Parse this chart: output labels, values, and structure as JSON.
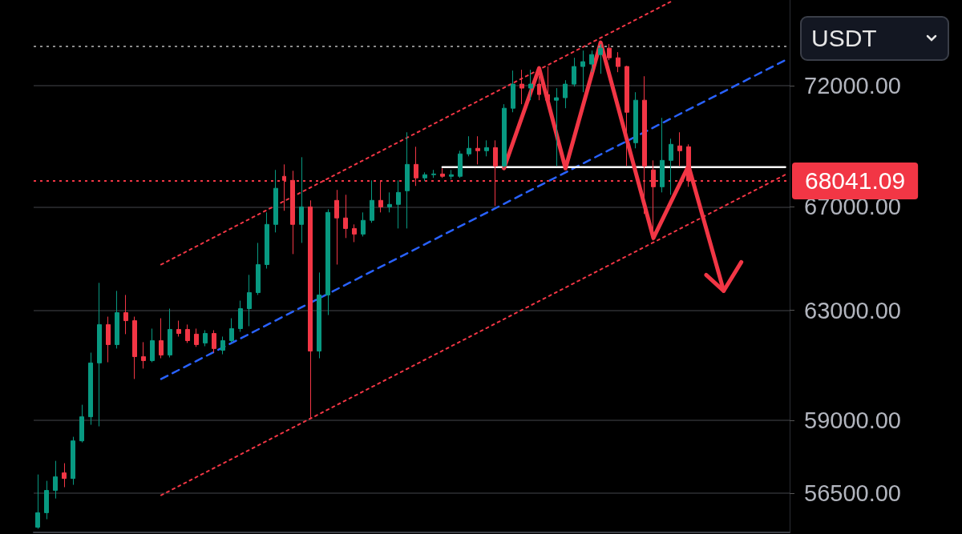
{
  "chart_data": {
    "type": "candlestick",
    "categories": [
      null,
      null,
      null,
      null,
      null,
      null,
      null,
      null,
      null,
      null,
      null,
      null,
      null,
      null,
      null,
      null,
      null,
      null,
      null,
      null,
      null,
      null,
      null,
      null,
      null,
      null,
      null,
      null,
      null,
      null,
      null,
      null,
      null,
      null,
      null,
      null,
      null,
      null,
      null,
      null,
      null,
      null,
      null,
      null,
      null,
      null,
      null,
      null,
      null,
      null,
      null,
      null,
      null,
      null,
      null,
      null,
      null,
      null,
      null,
      null,
      null,
      null,
      null,
      null,
      null,
      null,
      null,
      null,
      null,
      null,
      null,
      null,
      null,
      null,
      null,
      null,
      null,
      null,
      null,
      null,
      null,
      null,
      null,
      null,
      null,
      null
    ],
    "ohlc": [
      [
        55370,
        57135,
        55320,
        55850
      ],
      [
        55850,
        56920,
        55635,
        56595
      ],
      [
        56595,
        57600,
        56325,
        57055
      ],
      [
        57190,
        57520,
        56705,
        57000
      ],
      [
        57000,
        58430,
        56785,
        58290
      ],
      [
        58290,
        59555,
        58235,
        59130
      ],
      [
        59130,
        61430,
        58850,
        61055
      ],
      [
        61055,
        64035,
        58795,
        62465
      ],
      [
        62465,
        62760,
        61080,
        61725
      ],
      [
        61725,
        63730,
        61580,
        62910
      ],
      [
        62910,
        63575,
        62110,
        62610
      ],
      [
        62610,
        62760,
        60475,
        61285
      ],
      [
        61285,
        61815,
        60850,
        61140
      ],
      [
        61140,
        62315,
        61080,
        61870
      ],
      [
        61870,
        62700,
        61225,
        61345
      ],
      [
        61345,
        63060,
        61255,
        62285
      ],
      [
        62285,
        62610,
        62020,
        62135
      ],
      [
        62285,
        62465,
        61785,
        61870
      ],
      [
        62110,
        62315,
        61640,
        61725
      ],
      [
        61785,
        62255,
        61665,
        62135
      ],
      [
        62135,
        62255,
        61430,
        61580
      ],
      [
        61520,
        62020,
        61370,
        61870
      ],
      [
        61870,
        62700,
        61785,
        62315
      ],
      [
        62315,
        63360,
        62195,
        63060
      ],
      [
        63060,
        64340,
        62405,
        63665
      ],
      [
        63665,
        65575,
        63575,
        64735
      ],
      [
        64735,
        66775,
        64580,
        66300
      ],
      [
        66300,
        68485,
        65985,
        67740
      ],
      [
        68225,
        68710,
        66840,
        68060
      ],
      [
        68060,
        68450,
        65140,
        66300
      ],
      [
        66300,
        69005,
        65575,
        66995
      ],
      [
        66995,
        67255,
        59075,
        61490
      ],
      [
        61490,
        64430,
        61225,
        63575
      ],
      [
        63575,
        66900,
        62820,
        66775
      ],
      [
        67255,
        67675,
        64735,
        66555
      ],
      [
        66555,
        67480,
        65765,
        66140
      ],
      [
        66140,
        66300,
        65605,
        65920
      ],
      [
        65920,
        66775,
        65825,
        66460
      ],
      [
        66460,
        68060,
        66365,
        67255
      ],
      [
        67255,
        68060,
        66775,
        66995
      ],
      [
        66995,
        67575,
        66775,
        67095
      ],
      [
        67095,
        68060,
        66140,
        67575
      ],
      [
        67640,
        70035,
        66140,
        68710
      ],
      [
        68710,
        69435,
        67835,
        68160
      ],
      [
        68160,
        68385,
        68030,
        68290
      ],
      [
        68290,
        68485,
        68160,
        68320
      ],
      [
        68320,
        68550,
        68160,
        68225
      ],
      [
        68225,
        68485,
        68095,
        68290
      ],
      [
        68225,
        69270,
        68160,
        69140
      ],
      [
        69140,
        69870,
        69040,
        69370
      ],
      [
        69370,
        69870,
        68710,
        69270
      ],
      [
        69270,
        69700,
        69040,
        69400
      ],
      [
        69400,
        69700,
        67030,
        68645
      ],
      [
        68645,
        71215,
        68550,
        71045
      ],
      [
        71045,
        72655,
        70875,
        72070
      ],
      [
        72070,
        72690,
        71215,
        71900
      ],
      [
        71900,
        72690,
        71385,
        72070
      ],
      [
        72070,
        72410,
        71385,
        71625
      ],
      [
        71625,
        72830,
        71045,
        71385
      ],
      [
        71385,
        71900,
        68645,
        71490
      ],
      [
        71490,
        72240,
        71045,
        72070
      ],
      [
        72070,
        73210,
        71965,
        72830
      ],
      [
        72830,
        73525,
        71725,
        73040
      ],
      [
        72935,
        73525,
        72585,
        73350
      ],
      [
        73350,
        73810,
        72515,
        73630
      ],
      [
        73630,
        73810,
        73105,
        73210
      ],
      [
        73210,
        73455,
        72585,
        72830
      ],
      [
        72830,
        72865,
        68645,
        70875
      ],
      [
        69600,
        71725,
        69370,
        71385
      ],
      [
        71385,
        72410,
        66715,
        68645
      ],
      [
        68485,
        68875,
        65670,
        67800
      ],
      [
        67800,
        70640,
        67575,
        68875
      ],
      [
        68875,
        69770,
        67480,
        69535
      ],
      [
        69470,
        70035,
        68645,
        69270
      ],
      [
        69435,
        69535,
        67800,
        68041.09
      ],
      null,
      null,
      null,
      null,
      null,
      null,
      null,
      null,
      null,
      null,
      null
    ],
    "series": [
      {
        "type": "line",
        "color": "#f23645",
        "line_style": "dotted",
        "values": [
          null,
          null,
          null,
          null,
          null,
          null,
          null,
          null,
          null,
          null,
          null,
          null,
          null,
          null,
          64735,
          null,
          null,
          null,
          null,
          null,
          null,
          null,
          null,
          null,
          null,
          null,
          null,
          null,
          null,
          null,
          null,
          null,
          null,
          null,
          null,
          null,
          null,
          null,
          null,
          null,
          null,
          null,
          null,
          null,
          null,
          null,
          null,
          null,
          null,
          null,
          null,
          null,
          null,
          null,
          null,
          null,
          null,
          null,
          null,
          null,
          null,
          null,
          null,
          null,
          null,
          null,
          null,
          null,
          null,
          null,
          null,
          null,
          75700,
          null,
          null,
          null,
          null,
          null,
          null,
          null,
          null,
          null,
          null,
          null,
          null,
          null
        ]
      },
      {
        "type": "line",
        "color": "#f23645",
        "line_style": "dotted",
        "values": [
          null,
          null,
          null,
          null,
          null,
          null,
          null,
          null,
          null,
          null,
          null,
          null,
          null,
          null,
          56435,
          null,
          null,
          null,
          null,
          null,
          null,
          null,
          null,
          null,
          null,
          null,
          null,
          null,
          null,
          null,
          null,
          null,
          null,
          null,
          null,
          null,
          null,
          null,
          null,
          null,
          null,
          null,
          null,
          null,
          null,
          null,
          null,
          null,
          null,
          null,
          null,
          null,
          null,
          null,
          null,
          null,
          null,
          null,
          null,
          null,
          null,
          null,
          null,
          null,
          null,
          null,
          null,
          null,
          null,
          null,
          null,
          null,
          null,
          null,
          null,
          null,
          null,
          null,
          null,
          null,
          null,
          null,
          null,
          null,
          null,
          68290
        ]
      },
      {
        "type": "line",
        "color": "#2962ff",
        "line_style": "dashed",
        "values": [
          null,
          null,
          null,
          null,
          null,
          null,
          null,
          null,
          null,
          null,
          null,
          null,
          null,
          null,
          60475,
          null,
          null,
          null,
          null,
          null,
          null,
          null,
          null,
          null,
          null,
          null,
          null,
          null,
          null,
          null,
          null,
          null,
          null,
          null,
          null,
          null,
          null,
          null,
          null,
          null,
          null,
          null,
          null,
          null,
          null,
          null,
          null,
          null,
          null,
          null,
          null,
          null,
          null,
          null,
          null,
          null,
          null,
          null,
          null,
          null,
          null,
          null,
          null,
          null,
          null,
          null,
          null,
          null,
          null,
          null,
          null,
          null,
          null,
          null,
          null,
          null,
          null,
          null,
          null,
          null,
          null,
          null,
          null,
          null,
          null,
          73105
        ]
      },
      {
        "type": "line",
        "color": "#ffffff",
        "line_style": "solid",
        "values": [
          null,
          null,
          null,
          null,
          null,
          null,
          null,
          null,
          null,
          null,
          null,
          null,
          null,
          null,
          null,
          null,
          null,
          null,
          null,
          null,
          null,
          null,
          null,
          null,
          null,
          null,
          null,
          null,
          null,
          null,
          null,
          null,
          null,
          null,
          null,
          null,
          null,
          null,
          null,
          null,
          null,
          null,
          null,
          null,
          null,
          null,
          68600,
          null,
          null,
          null,
          null,
          null,
          null,
          null,
          null,
          null,
          null,
          null,
          null,
          null,
          null,
          null,
          null,
          null,
          null,
          null,
          null,
          null,
          null,
          null,
          null,
          null,
          null,
          null,
          null,
          null,
          null,
          null,
          null,
          null,
          null,
          null,
          null,
          null,
          null,
          68600
        ]
      },
      {
        "type": "line",
        "color": "#f23645",
        "line_style": "solid",
        "values": [
          null,
          null,
          null,
          null,
          null,
          null,
          null,
          null,
          null,
          null,
          null,
          null,
          null,
          null,
          null,
          null,
          null,
          null,
          null,
          null,
          null,
          null,
          null,
          null,
          null,
          null,
          null,
          null,
          null,
          null,
          null,
          null,
          null,
          null,
          null,
          null,
          null,
          null,
          null,
          null,
          null,
          null,
          null,
          null,
          null,
          null,
          null,
          null,
          null,
          null,
          null,
          null,
          null,
          68550,
          null,
          null,
          null,
          72760,
          null,
          null,
          68550,
          null,
          null,
          null,
          73880,
          null,
          null,
          null,
          null,
          null,
          65765,
          null,
          null,
          null,
          68650,
          null,
          null,
          null,
          63730,
          null,
          null,
          null,
          null,
          null,
          null,
          null
        ]
      },
      {
        "type": "line",
        "color": "#f23645",
        "line_style": "solid",
        "values": [
          null,
          null,
          null,
          null,
          null,
          null,
          null,
          null,
          null,
          null,
          null,
          null,
          null,
          null,
          null,
          null,
          null,
          null,
          null,
          null,
          null,
          null,
          null,
          null,
          null,
          null,
          null,
          null,
          null,
          null,
          null,
          null,
          null,
          null,
          null,
          null,
          null,
          null,
          null,
          null,
          null,
          null,
          null,
          null,
          null,
          null,
          null,
          null,
          null,
          null,
          null,
          null,
          null,
          null,
          null,
          null,
          null,
          null,
          null,
          null,
          null,
          null,
          null,
          null,
          null,
          null,
          null,
          null,
          null,
          null,
          null,
          null,
          null,
          null,
          null,
          null,
          64340,
          null,
          63730,
          null,
          64830,
          null,
          null,
          null,
          null,
          null
        ]
      }
    ],
    "ylim": [
      55200,
      75770
    ],
    "yticks": [
      {
        "value": 72000,
        "label": "72000.00"
      },
      {
        "value": 67000,
        "label": "67000.00"
      },
      {
        "value": 63000,
        "label": "63000.00"
      },
      {
        "value": 59000,
        "label": "59000.00"
      },
      {
        "value": 56500,
        "label": "56500.00"
      }
    ],
    "log": true,
    "grid": "y",
    "tick_labels": "y",
    "marker": "none",
    "ref_lines": [
      {
        "axis": "y",
        "value": 68041.09,
        "label": "68041.09",
        "color": "#f23645",
        "line_style": "dotted"
      },
      {
        "axis": "y",
        "value": 73700,
        "color": "#8c8c8c",
        "line_style": "dotted"
      }
    ],
    "annotations": [
      "USDT"
    ]
  }
}
